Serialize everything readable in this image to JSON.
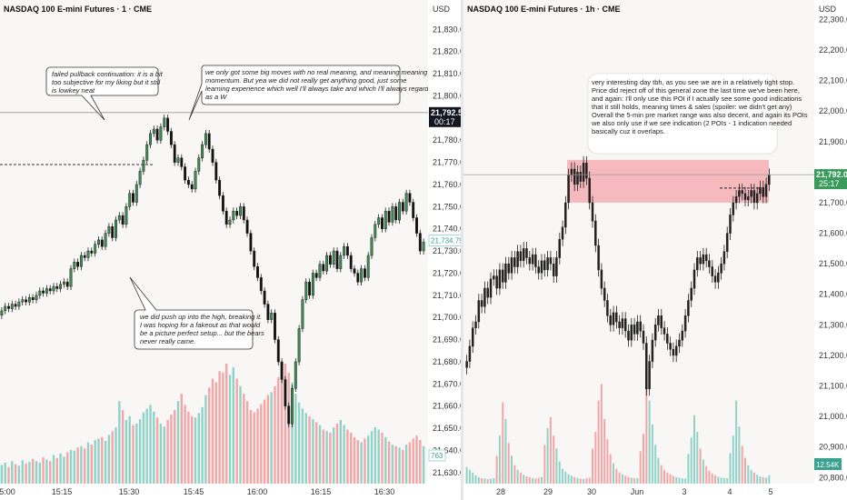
{
  "chart_data": [
    {
      "type": "candlestick",
      "title": "NASDAQ 100 E-mini Futures · 1 · CME",
      "price_axis_label": "USD",
      "ylim": [
        21625,
        21840
      ],
      "y_ticks": [
        "21,830.00",
        "21,820.00",
        "21,810.00",
        "21,800.00",
        "21,790.00",
        "21,780.00",
        "21,770.00",
        "21,760.00",
        "21,750.00",
        "21,740.00",
        "21,730.00",
        "21,720.00",
        "21,710.00",
        "21,700.00",
        "21,690.00",
        "21,680.00",
        "21,670.00",
        "21,660.00",
        "21,650.00",
        "21,640.00",
        "21,630.00"
      ],
      "x_ticks": [
        "5:00",
        "15:15",
        "15:30",
        "15:45",
        "16:00",
        "16:15",
        "16:30"
      ],
      "current_price_label": "21,792.50",
      "countdown_label": "00:17",
      "secondary_price_label": "21,734.75",
      "volume_label": "763",
      "colors": {
        "up": "#3f8f55",
        "down": "#111111",
        "vol_up": "#8fd3c8",
        "vol_down": "#f4a6a6",
        "price_line": "#888888"
      },
      "close_prices": [
        21703,
        21705,
        21704,
        21706,
        21705,
        21707,
        21708,
        21707,
        21709,
        21708,
        21710,
        21712,
        21711,
        21713,
        21712,
        21714,
        21713,
        21715,
        21716,
        21714,
        21722,
        21725,
        21723,
        21728,
        21727,
        21730,
        21729,
        21733,
        21735,
        21732,
        21738,
        21741,
        21736,
        21744,
        21746,
        21742,
        21750,
        21756,
        21752,
        21760,
        21766,
        21771,
        21778,
        21783,
        21785,
        21780,
        21786,
        21790,
        21784,
        21778,
        21770,
        21772,
        21768,
        21762,
        21760,
        21758,
        21766,
        21772,
        21778,
        21783,
        21776,
        21770,
        21762,
        21755,
        21748,
        21742,
        21744,
        21748,
        21746,
        21750,
        21744,
        21738,
        21730,
        21723,
        21718,
        21712,
        21706,
        21699,
        21702,
        21690,
        21680,
        21672,
        21660,
        21652,
        21668,
        21680,
        21695,
        21708,
        21716,
        21710,
        21720,
        21718,
        21724,
        21721,
        21728,
        21724,
        21730,
        21722,
        21728,
        21732,
        21728,
        21722,
        21720,
        21716,
        21722,
        21718,
        21728,
        21736,
        21742,
        21745,
        21740,
        21748,
        21743,
        21750,
        21744,
        21752,
        21748,
        21756,
        21752,
        21745,
        21738,
        21730,
        21734
      ],
      "volumes": [
        25,
        28,
        22,
        30,
        26,
        24,
        31,
        27,
        29,
        33,
        30,
        28,
        35,
        32,
        30,
        38,
        34,
        40,
        36,
        42,
        45,
        44,
        48,
        50,
        47,
        55,
        52,
        58,
        60,
        62,
        57,
        65,
        70,
        75,
        110,
        98,
        85,
        90,
        78,
        80,
        86,
        95,
        100,
        105,
        96,
        88,
        80,
        76,
        85,
        92,
        98,
        110,
        120,
        105,
        96,
        90,
        88,
        94,
        102,
        118,
        128,
        140,
        135,
        150,
        148,
        160,
        145,
        155,
        140,
        130,
        120,
        110,
        98,
        95,
        100,
        106,
        112,
        118,
        122,
        130,
        142,
        155,
        160,
        148,
        135,
        120,
        108,
        100,
        94,
        90,
        86,
        82,
        78,
        72,
        70,
        68,
        75,
        80,
        85,
        78,
        72,
        68,
        62,
        58,
        55,
        60,
        64,
        70,
        75,
        72,
        68,
        62,
        56,
        52,
        50,
        48,
        45,
        52,
        55,
        60,
        64,
        58,
        50
      ]
    },
    {
      "type": "candlestick",
      "title": "NASDAQ 100 E-mini Futures · 1h · CME",
      "price_axis_label": "USD",
      "ylim": [
        20780,
        22340
      ],
      "y_ticks": [
        "22,300.00",
        "22,200.00",
        "22,100.00",
        "22,000.00",
        "21,900.00",
        "21,800.00",
        "21,700.00",
        "21,600.00",
        "21,500.00",
        "21,400.00",
        "21,300.00",
        "21,200.00",
        "21,100.00",
        "21,000.00",
        "20,900.00",
        "20,800.00"
      ],
      "x_ticks": [
        "28",
        "29",
        "30",
        "Jun",
        "3",
        "4",
        "5"
      ],
      "current_price_label": "21,792.00",
      "countdown_label": "25:17",
      "volume_label": "12.54K",
      "zone": {
        "from": 21700,
        "to": 21840
      },
      "colors": {
        "up": "#222222",
        "down": "#222222",
        "vol_up": "#8fd3c8",
        "vol_down": "#f4a6a6",
        "zone": "#f5b2b8",
        "price_line": "#888888"
      },
      "close_prices": [
        21180,
        21230,
        21290,
        21310,
        21380,
        21360,
        21420,
        21390,
        21450,
        21460,
        21420,
        21480,
        21440,
        21500,
        21470,
        21520,
        21490,
        21540,
        21510,
        21550,
        21520,
        21500,
        21530,
        21490,
        21470,
        21510,
        21480,
        21520,
        21500,
        21460,
        21520,
        21580,
        21620,
        21700,
        21790,
        21810,
        21760,
        21800,
        21770,
        21830,
        21780,
        21700,
        21640,
        21560,
        21480,
        21420,
        21380,
        21330,
        21300,
        21340,
        21310,
        21290,
        21320,
        21280,
        21250,
        21300,
        21270,
        21310,
        21280,
        21240,
        21090,
        21180,
        21250,
        21300,
        21330,
        21290,
        21270,
        21240,
        21220,
        21200,
        21230,
        21250,
        21280,
        21330,
        21380,
        21420,
        21480,
        21520,
        21500,
        21530,
        21510,
        21490,
        21460,
        21440,
        21470,
        21500,
        21540,
        21600,
        21660,
        21700,
        21720,
        21740,
        21730,
        21710,
        21720,
        21740,
        21700,
        21730,
        21750,
        21720,
        21760,
        21790
      ],
      "volumes": [
        180,
        150,
        120,
        90,
        70,
        60,
        55,
        48,
        52,
        60,
        300,
        520,
        880,
        700,
        440,
        300,
        200,
        150,
        120,
        96,
        80,
        70,
        60,
        55,
        64,
        72,
        420,
        600,
        720,
        520,
        380,
        240,
        160,
        130,
        100,
        86,
        70,
        60,
        55,
        50,
        58,
        62,
        380,
        560,
        900,
        1080,
        700,
        480,
        320,
        220,
        160,
        120,
        100,
        86,
        72,
        64,
        58,
        60,
        350,
        540,
        1260,
        900,
        640,
        420,
        280,
        200,
        150,
        120,
        100,
        84,
        70,
        64,
        58,
        56,
        320,
        500,
        740,
        560,
        380,
        260,
        190,
        140,
        110,
        90,
        76,
        66,
        60,
        58,
        330,
        520,
        900,
        620,
        410,
        280,
        200,
        150,
        120,
        96,
        80,
        70,
        64,
        90
      ]
    }
  ],
  "annotations_left": {
    "note_a": [
      "failed pullback continuation: it is a bit",
      "too subjective for my liking but it still",
      "is lowkey neat"
    ],
    "note_b": [
      "we only got some big moves with no real meaning, and meaning meaning",
      "momentum. But yea we did not really get anything good, just some",
      "learning experience which well I'll always take and which I'll always regard",
      "as a W"
    ],
    "note_c": [
      "we did push up into the high, breaking it.",
      "I was hoping for a fakeout as that would",
      "be a picture perfect setup... but the bears",
      "never really came."
    ]
  },
  "annotation_right": [
    "very interesting day tbh, as you see we are in a relatively tight stop.",
    "Price did reject off of this general zone the last time we've been here,",
    "and again: I'll only use this POI if I actually see some good indications",
    "that it still holds, meaning times & sales (spoiler: we didn't get any)",
    "Overall the 5-min pre market range was also decent, and again its POIs",
    "we also only use if we see indication (2 POIs - 1 indication needed",
    "basically cuz it overlaps."
  ]
}
